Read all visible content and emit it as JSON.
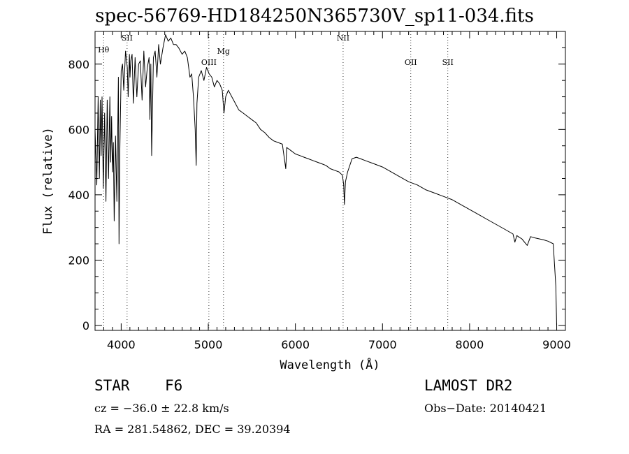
{
  "chart_data": {
    "type": "line",
    "title": "spec-56769-HD184250N365730V_sp11-034.fits",
    "xlabel": "Wavelength (Å)",
    "ylabel": "Flux (relative)",
    "xlim": [
      3700,
      9100
    ],
    "ylim": [
      -15,
      900
    ],
    "xticks": [
      4000,
      5000,
      6000,
      7000,
      8000,
      9000
    ],
    "yticks": [
      0,
      200,
      400,
      600,
      800
    ],
    "grid": false,
    "lines": [
      {
        "label": "Hθ",
        "wavelength": 3798
      },
      {
        "label": "SII",
        "wavelength": 4068
      },
      {
        "label": "OIII",
        "wavelength": 5007
      },
      {
        "label": "Mg",
        "wavelength": 5175
      },
      {
        "label": "NII",
        "wavelength": 6548
      },
      {
        "label": "OII",
        "wavelength": 7325
      },
      {
        "label": "SII",
        "wavelength": 7750
      }
    ],
    "series": [
      {
        "x": [
          3700,
          3720,
          3735,
          3750,
          3760,
          3770,
          3780,
          3795,
          3810,
          3825,
          3840,
          3855,
          3870,
          3880,
          3890,
          3900,
          3910,
          3920,
          3935,
          3950,
          3968,
          3975,
          3985,
          4000,
          4015,
          4030,
          4050,
          4070,
          4080,
          4095,
          4101,
          4110,
          4125,
          4140,
          4160,
          4180,
          4200,
          4220,
          4240,
          4260,
          4280,
          4300,
          4320,
          4330,
          4340,
          4350,
          4370,
          4390,
          4410,
          4430,
          4450,
          4480,
          4510,
          4540,
          4570,
          4600,
          4630,
          4660,
          4700,
          4730,
          4760,
          4790,
          4810,
          4830,
          4850,
          4861,
          4870,
          4890,
          4920,
          4950,
          4980,
          5010,
          5040,
          5070,
          5100,
          5130,
          5160,
          5180,
          5200,
          5230,
          5270,
          5310,
          5350,
          5400,
          5450,
          5500,
          5550,
          5600,
          5650,
          5700,
          5750,
          5800,
          5850,
          5890,
          5900,
          5950,
          6000,
          6050,
          6100,
          6150,
          6200,
          6250,
          6300,
          6350,
          6400,
          6450,
          6500,
          6540,
          6555,
          6563,
          6575,
          6600,
          6650,
          6700,
          6750,
          6800,
          6900,
          7000,
          7100,
          7200,
          7300,
          7400,
          7500,
          7600,
          7700,
          7800,
          7900,
          8000,
          8100,
          8200,
          8300,
          8400,
          8498,
          8520,
          8542,
          8570,
          8600,
          8662,
          8700,
          8750,
          8800,
          8850,
          8900,
          8960,
          8990,
          9000
        ],
        "y": [
          600,
          430,
          700,
          450,
          690,
          520,
          700,
          420,
          650,
          380,
          690,
          450,
          700,
          500,
          640,
          470,
          560,
          320,
          580,
          380,
          760,
          250,
          540,
          780,
          800,
          720,
          840,
          790,
          700,
          830,
          760,
          810,
          830,
          680,
          820,
          700,
          800,
          810,
          690,
          840,
          730,
          790,
          820,
          630,
          800,
          520,
          820,
          840,
          760,
          860,
          800,
          850,
          890,
          870,
          880,
          860,
          860,
          850,
          830,
          840,
          820,
          760,
          770,
          700,
          600,
          490,
          680,
          760,
          780,
          750,
          790,
          770,
          760,
          730,
          750,
          740,
          720,
          650,
          700,
          720,
          700,
          680,
          660,
          650,
          640,
          630,
          620,
          600,
          590,
          575,
          565,
          560,
          555,
          480,
          545,
          535,
          525,
          520,
          515,
          510,
          505,
          500,
          495,
          490,
          480,
          475,
          470,
          460,
          430,
          370,
          440,
          470,
          510,
          515,
          510,
          505,
          495,
          485,
          470,
          455,
          440,
          430,
          415,
          405,
          395,
          385,
          370,
          355,
          340,
          325,
          310,
          295,
          280,
          255,
          275,
          270,
          265,
          245,
          272,
          268,
          265,
          262,
          258,
          250,
          120,
          0
        ]
      }
    ]
  },
  "info": {
    "obj_type": "STAR",
    "subclass": "F6",
    "survey": "LAMOST DR2",
    "cz": "cz = −36.0 ± 22.8 km/s",
    "obs_date": "Obs−Date: 20140421",
    "radec": "RA = 281.54862, DEC =  39.20394"
  }
}
